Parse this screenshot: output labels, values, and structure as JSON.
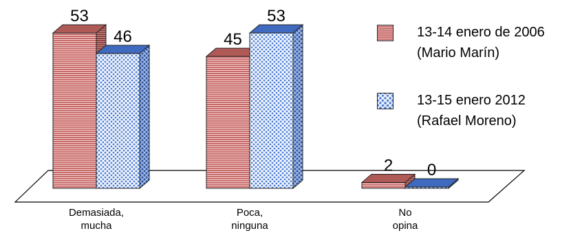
{
  "chart_data": {
    "type": "bar",
    "categories": [
      {
        "line1": "Demasiada,",
        "line2": "mucha"
      },
      {
        "line1": "Poca,",
        "line2": "ninguna"
      },
      {
        "line1": "No",
        "line2": "opina"
      }
    ],
    "series": [
      {
        "name_line1": "13-14 enero de 2006",
        "name_line2": "(Mario Marín)",
        "values": [
          53,
          45,
          2
        ],
        "color": "#c96c6a",
        "side_color": "#8e4543",
        "top_color": "#b05a58"
      },
      {
        "name_line1": "13-15 enero 2012",
        "name_line2": "(Rafael Moreno)",
        "values": [
          46,
          53,
          0
        ],
        "color": "#4f7fd6",
        "side_color": "#2f56a2",
        "top_color": "#3f6ac0"
      }
    ],
    "ylim": [
      0,
      53
    ],
    "grid": false,
    "legend": "right",
    "three_d": true
  }
}
